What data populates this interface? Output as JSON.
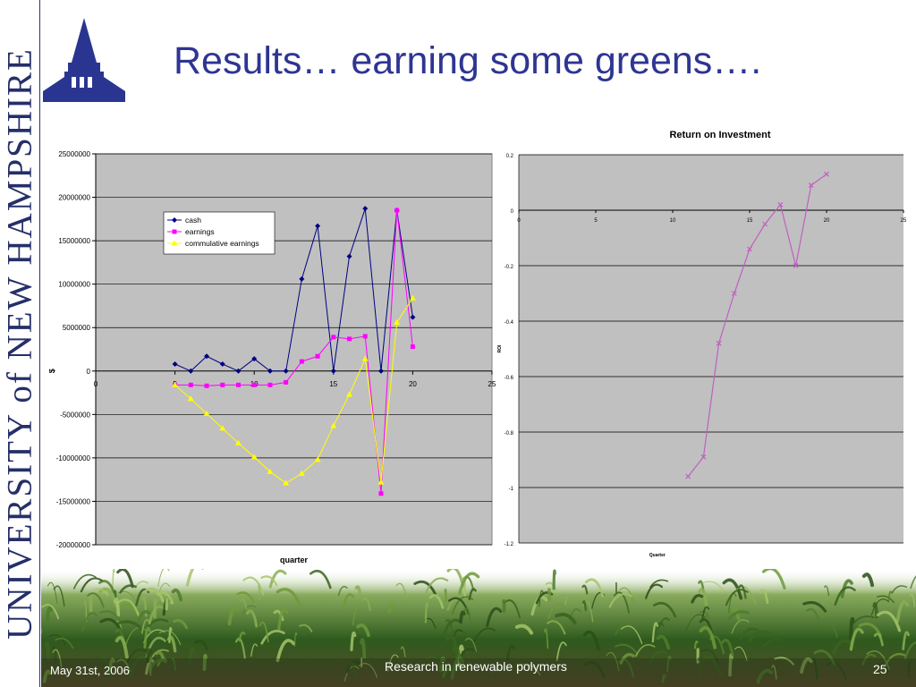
{
  "slide": {
    "title": "Results… earning some greens….",
    "vertical_text": "UNIVERSITY of NEW HAMPSHIRE",
    "footer_date": "May 31st, 2006",
    "footer_center": "Research in renewable polymers",
    "page_number": "25"
  },
  "colors": {
    "title": "#2e3593",
    "plot_bg": "#c0c0c0",
    "cash": "#000080",
    "earnings": "#ff00ff",
    "cumulative": "#ffff00",
    "roi": "#c060c0",
    "university": "#252f68"
  },
  "chart_data": [
    {
      "type": "line",
      "title": "",
      "xlabel": "quarter",
      "ylabel": "$",
      "xlim": [
        0,
        25
      ],
      "ylim": [
        -20000000,
        25000000
      ],
      "x_ticks": [
        0,
        5,
        10,
        15,
        20,
        25
      ],
      "y_ticks": [
        25000000,
        20000000,
        15000000,
        10000000,
        5000000,
        0,
        -5000000,
        -10000000,
        -15000000,
        -20000000
      ],
      "grid": true,
      "legend_position": "upper-left-inside",
      "x": [
        5,
        6,
        7,
        8,
        9,
        10,
        11,
        12,
        13,
        14,
        15,
        16,
        17,
        18,
        19,
        20
      ],
      "series": [
        {
          "name": "cash",
          "color": "#000080",
          "marker": "diamond",
          "values": [
            800000,
            0,
            1700000,
            800000,
            0,
            1400000,
            0,
            0,
            10600000,
            16700000,
            0,
            13200000,
            18700000,
            0,
            18500000,
            6200000
          ]
        },
        {
          "name": "earnings",
          "color": "#ff00ff",
          "marker": "square",
          "values": [
            -1600000,
            -1600000,
            -1700000,
            -1600000,
            -1600000,
            -1600000,
            -1600000,
            -1300000,
            1100000,
            1700000,
            3900000,
            3700000,
            4000000,
            -14100000,
            18500000,
            2800000
          ]
        },
        {
          "name": "commulative earnings",
          "color": "#ffff00",
          "marker": "triangle",
          "values": [
            -1600000,
            -3200000,
            -4900000,
            -6600000,
            -8300000,
            -9900000,
            -11600000,
            -12900000,
            -11800000,
            -10200000,
            -6300000,
            -2700000,
            1400000,
            -12800000,
            5600000,
            8400000
          ]
        }
      ]
    },
    {
      "type": "line",
      "title": "Return on Investment",
      "xlabel": "Quarter",
      "ylabel": "ROI",
      "xlim": [
        0,
        25
      ],
      "ylim": [
        -1.2,
        0.2
      ],
      "x_ticks": [
        0,
        5,
        10,
        15,
        20,
        25
      ],
      "y_ticks": [
        0.2,
        0,
        -0.2,
        -0.4,
        -0.6,
        -0.8,
        -1,
        -1.2
      ],
      "grid": true,
      "x": [
        11,
        12,
        13,
        14,
        15,
        16,
        17,
        18,
        19,
        20
      ],
      "series": [
        {
          "name": "",
          "color": "#c060c0",
          "marker": "x",
          "values": [
            -0.96,
            -0.89,
            -0.48,
            -0.3,
            -0.14,
            -0.05,
            0.02,
            -0.2,
            0.09,
            0.13
          ]
        }
      ]
    }
  ]
}
